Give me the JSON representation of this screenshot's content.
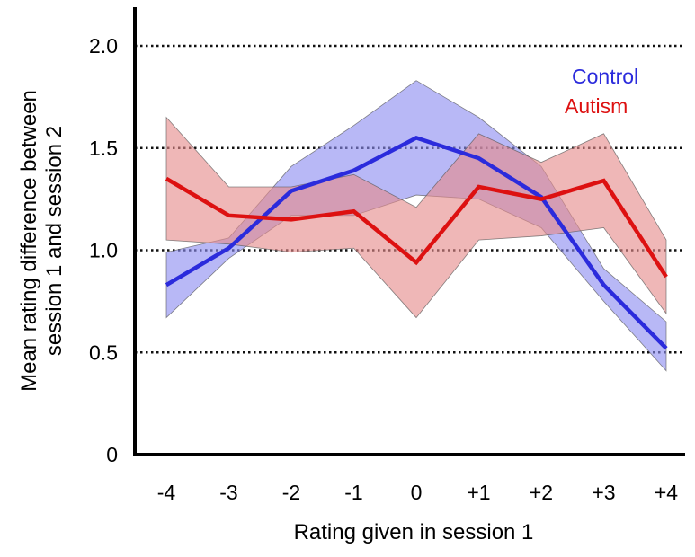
{
  "chart_data": {
    "type": "line",
    "xlabel": "Rating given in session 1",
    "ylabel_lines": [
      "Mean rating difference between",
      "session 1 and session 2"
    ],
    "categories": [
      "-4",
      "-3",
      "-2",
      "-1",
      "0",
      "+1",
      "+2",
      "+3",
      "+4"
    ],
    "ylim": [
      0,
      2.2
    ],
    "yticks": [
      0,
      0.5,
      1.0,
      1.5,
      2.0
    ],
    "ytick_labels": [
      "0",
      "0.5",
      "1.0",
      "1.5",
      "2.0"
    ],
    "gridlines": [
      0.5,
      1.0,
      1.5,
      2.0
    ],
    "grid": "dotted horizontal",
    "legend_position": "top-right",
    "series": [
      {
        "name": "Control",
        "color": "#2b2bdc",
        "fill_color": "#8c8cf0",
        "values": [
          0.83,
          1.01,
          1.29,
          1.39,
          1.55,
          1.45,
          1.26,
          0.83,
          0.52
        ],
        "upper": [
          0.99,
          1.06,
          1.41,
          1.61,
          1.83,
          1.65,
          1.41,
          0.91,
          0.65
        ],
        "lower": [
          0.67,
          0.96,
          1.17,
          1.17,
          1.27,
          1.25,
          1.11,
          0.75,
          0.41
        ]
      },
      {
        "name": "Autism",
        "color": "#dd1111",
        "fill_color": "#e58a8a",
        "values": [
          1.35,
          1.17,
          1.15,
          1.19,
          0.94,
          1.31,
          1.25,
          1.34,
          0.87
        ],
        "upper": [
          1.65,
          1.31,
          1.31,
          1.37,
          1.21,
          1.57,
          1.43,
          1.57,
          1.05
        ],
        "lower": [
          1.05,
          1.03,
          0.99,
          1.01,
          0.67,
          1.05,
          1.07,
          1.11,
          0.69
        ]
      }
    ]
  }
}
